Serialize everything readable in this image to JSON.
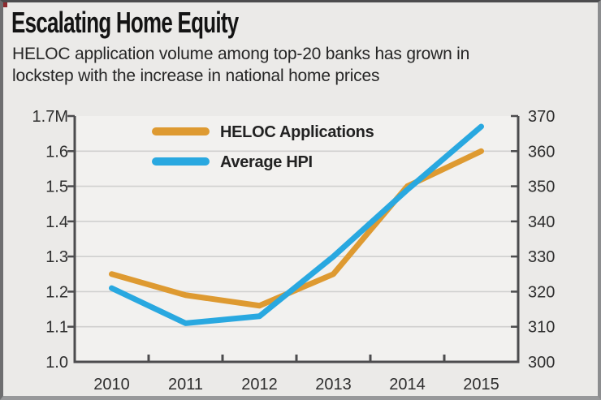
{
  "frame": {
    "corner_accent_color": "#8e2a2e"
  },
  "header": {
    "title": "Escalating Home Equity",
    "subtitle_lines": [
      "HELOC application volume among top-20 banks has grown in",
      "lockstep with the increase in national home prices"
    ]
  },
  "chart_data": {
    "type": "line",
    "categories": [
      "2010",
      "2011",
      "2012",
      "2013",
      "2014",
      "2015"
    ],
    "series": [
      {
        "name": "HELOC Applications",
        "axis": "left",
        "color": "#DE9A31",
        "values": [
          1.25,
          1.19,
          1.16,
          1.25,
          1.5,
          1.6
        ]
      },
      {
        "name": "Average HPI",
        "axis": "right",
        "color": "#29A8E0",
        "values": [
          321,
          311,
          313,
          330,
          349,
          367
        ]
      }
    ],
    "left_axis": {
      "unit": "M",
      "min": 1.0,
      "max": 1.7,
      "tick_values": [
        1.7,
        1.6,
        1.5,
        1.4,
        1.3,
        1.2,
        1.1,
        1.0
      ],
      "tick_labels": [
        "1.7M",
        "1.6",
        "1.5",
        "1.4",
        "1.3",
        "1.2",
        "1.1",
        "1.0"
      ]
    },
    "right_axis": {
      "min": 300,
      "max": 370,
      "tick_values": [
        370,
        360,
        350,
        340,
        330,
        320,
        310,
        300
      ],
      "tick_labels": [
        "370",
        "360",
        "350",
        "340",
        "330",
        "320",
        "310",
        "300"
      ]
    },
    "legend": {
      "position": "inside-top-left",
      "labels": [
        "HELOC Applications",
        "Average HPI"
      ]
    },
    "grid": true
  },
  "styles": {
    "page_bg": "#ebeae8",
    "plot_bg": "#f2f1ef",
    "grid_color": "#d0d0cf",
    "axis_color": "#4c4c4e",
    "label_color": "#2e2e2e",
    "heloc_color": "#DE9A31",
    "hpi_color": "#29A8E0"
  }
}
